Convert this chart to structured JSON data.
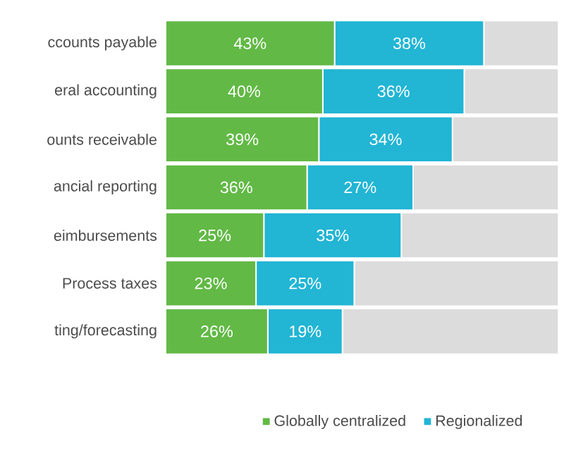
{
  "chart_data": {
    "type": "bar",
    "orientation": "horizontal",
    "stacked": true,
    "categories": [
      "ccounts payable",
      "eral accounting",
      "ounts receivable",
      "ancial reporting",
      "eimbursements",
      "Process taxes",
      "ting/forecasting"
    ],
    "series": [
      {
        "name": "Globally centralized",
        "color": "#62b946",
        "values": [
          43,
          40,
          39,
          36,
          25,
          23,
          26
        ],
        "value_labels": [
          "43%",
          "40%",
          "39%",
          "36%",
          "25%",
          "23%",
          "26%"
        ]
      },
      {
        "name": "Regionalized",
        "color": "#22b5d4",
        "values": [
          38,
          36,
          34,
          27,
          35,
          25,
          19
        ],
        "value_labels": [
          "38%",
          "36%",
          "34%",
          "27%",
          "35%",
          "25%",
          "19%"
        ]
      },
      {
        "color": "#dcdcdc",
        "values": [
          19,
          24,
          27,
          37,
          40,
          52,
          55
        ]
      }
    ],
    "xlim": [
      0,
      100
    ],
    "tick_labels": "y",
    "legend": "bottom"
  }
}
